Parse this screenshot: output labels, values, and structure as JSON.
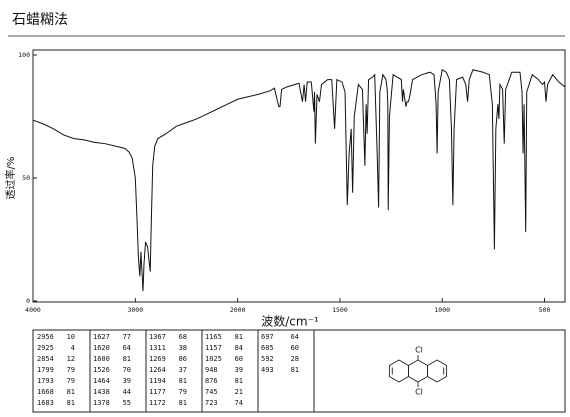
{
  "title": "石蜡糊法",
  "chart_data": {
    "type": "line",
    "ylabel": "透过率/%",
    "xlabel": "波数/cm⁻¹",
    "color": "#111111",
    "xlim": [
      4000,
      400
    ],
    "ylim": [
      0,
      100
    ],
    "xticks": [
      4000,
      3000,
      2000,
      1500,
      1000,
      500
    ],
    "yticks": [
      0,
      50,
      100
    ],
    "x": [
      4000,
      3900,
      3800,
      3700,
      3600,
      3500,
      3400,
      3300,
      3200,
      3100,
      3060,
      3030,
      3000,
      2985,
      2970,
      2956,
      2945,
      2935,
      2925,
      2915,
      2900,
      2880,
      2870,
      2854,
      2845,
      2830,
      2810,
      2780,
      2700,
      2600,
      2500,
      2400,
      2300,
      2200,
      2100,
      2000,
      1900,
      1840,
      1820,
      1799,
      1793,
      1785,
      1760,
      1720,
      1700,
      1683,
      1675,
      1668,
      1660,
      1640,
      1627,
      1624,
      1620,
      1612,
      1600,
      1590,
      1560,
      1540,
      1526,
      1515,
      1490,
      1475,
      1464,
      1455,
      1445,
      1438,
      1430,
      1410,
      1390,
      1378,
      1372,
      1367,
      1360,
      1340,
      1330,
      1318,
      1311,
      1305,
      1290,
      1275,
      1269,
      1266,
      1264,
      1258,
      1240,
      1220,
      1200,
      1194,
      1190,
      1177,
      1172,
      1165,
      1157,
      1145,
      1100,
      1060,
      1040,
      1030,
      1025,
      1020,
      1000,
      980,
      965,
      955,
      948,
      942,
      930,
      900,
      885,
      876,
      868,
      850,
      800,
      770,
      755,
      745,
      738,
      728,
      723,
      718,
      705,
      697,
      690,
      660,
      620,
      610,
      605,
      600,
      592,
      587,
      560,
      530,
      510,
      500,
      493,
      485,
      460,
      430,
      400
    ],
    "values": [
      73.5,
      72,
      70,
      67.5,
      66,
      65.5,
      64.5,
      64,
      63,
      62,
      60.5,
      58,
      50,
      35,
      18,
      10,
      20,
      12,
      4,
      15,
      24,
      22,
      18,
      12,
      30,
      55,
      63,
      66,
      68,
      71,
      72.5,
      74,
      76,
      78,
      80,
      82,
      84,
      85.5,
      86.5,
      79,
      79,
      86,
      87,
      88,
      88.5,
      81,
      88,
      81,
      89,
      89,
      77,
      85,
      64,
      84,
      81,
      88,
      90,
      90,
      70,
      90,
      89,
      85,
      39,
      60,
      70,
      44,
      75,
      88,
      86,
      55,
      80,
      68,
      90,
      91,
      92,
      60,
      38,
      85,
      92,
      90,
      86,
      80,
      37,
      75,
      92,
      91,
      90,
      81,
      86,
      79,
      81,
      81,
      84,
      90,
      92,
      93,
      92,
      80,
      60,
      85,
      94,
      93,
      90,
      70,
      39,
      70,
      90,
      91,
      88,
      81,
      90,
      94,
      93,
      92,
      80,
      21,
      70,
      80,
      74,
      88,
      86,
      64,
      86,
      93,
      93,
      85,
      60,
      80,
      28,
      85,
      92,
      90,
      88,
      89,
      81,
      88,
      92,
      89,
      87
    ]
  },
  "table": {
    "columns": [
      [
        [
          2956,
          10
        ],
        [
          2925,
          4
        ],
        [
          2854,
          12
        ],
        [
          1799,
          79
        ],
        [
          1793,
          79
        ],
        [
          1668,
          81
        ],
        [
          1683,
          81
        ]
      ],
      [
        [
          1627,
          77
        ],
        [
          1620,
          64
        ],
        [
          1600,
          81
        ],
        [
          1526,
          70
        ],
        [
          1464,
          39
        ],
        [
          1438,
          44
        ],
        [
          1378,
          55
        ]
      ],
      [
        [
          1367,
          68
        ],
        [
          1311,
          38
        ],
        [
          1269,
          86
        ],
        [
          1264,
          37
        ],
        [
          1194,
          81
        ],
        [
          1177,
          79
        ],
        [
          1172,
          81
        ]
      ],
      [
        [
          1165,
          81
        ],
        [
          1157,
          84
        ],
        [
          1025,
          60
        ],
        [
          948,
          39
        ],
        [
          876,
          81
        ],
        [
          745,
          21
        ],
        [
          723,
          74
        ]
      ],
      [
        [
          697,
          64
        ],
        [
          605,
          60
        ],
        [
          592,
          28
        ],
        [
          493,
          81
        ]
      ]
    ]
  },
  "structure": {
    "labels": [
      "Cl",
      "Cl"
    ]
  }
}
